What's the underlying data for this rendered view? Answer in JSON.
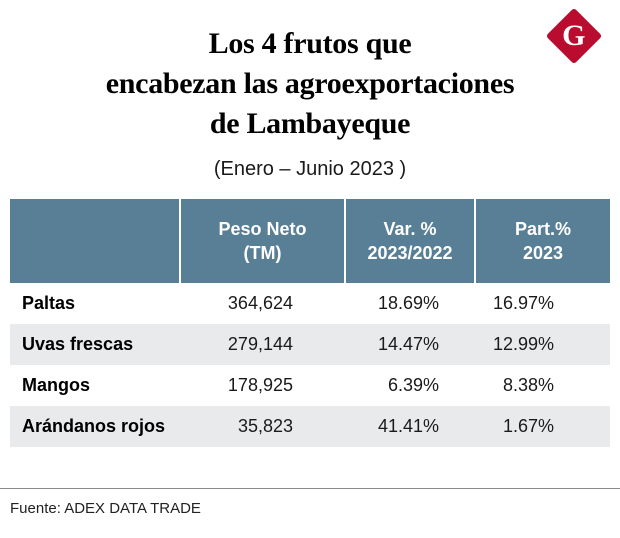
{
  "brand": {
    "logo_letter": "G",
    "logo_color": "#ba0c2f"
  },
  "header": {
    "title_lines": [
      "Los 4 frutos que",
      "encabezan las agroexportaciones",
      "de Lambayeque"
    ],
    "subtitle": "(Enero – Junio 2023 )"
  },
  "chart_data": {
    "type": "table",
    "title": "Los 4 frutos que encabezan las agroexportaciones de Lambayeque",
    "subtitle": "(Enero – Junio 2023 )",
    "columns": [
      {
        "line1": "Peso Neto",
        "line2": "(TM)"
      },
      {
        "line1": "Var. %",
        "line2": "2023/2022"
      },
      {
        "line1": "Part.%",
        "line2": "2023"
      }
    ],
    "rows": [
      {
        "label": "Paltas",
        "values": [
          "364,624",
          "18.69%",
          "16.97%"
        ]
      },
      {
        "label": "Uvas frescas",
        "values": [
          "279,144",
          "14.47%",
          "12.99%"
        ]
      },
      {
        "label": "Mangos",
        "values": [
          "178,925",
          "6.39%",
          "8.38%"
        ]
      },
      {
        "label": "Arándanos rojos",
        "values": [
          "35,823",
          "41.41%",
          "1.67%"
        ]
      }
    ],
    "colors": {
      "header_bg": "#587f96",
      "alt_row_bg": "#e8eaec",
      "logo_red": "#ba0c2f"
    }
  },
  "footer": {
    "source": "Fuente: ADEX DATA TRADE"
  }
}
